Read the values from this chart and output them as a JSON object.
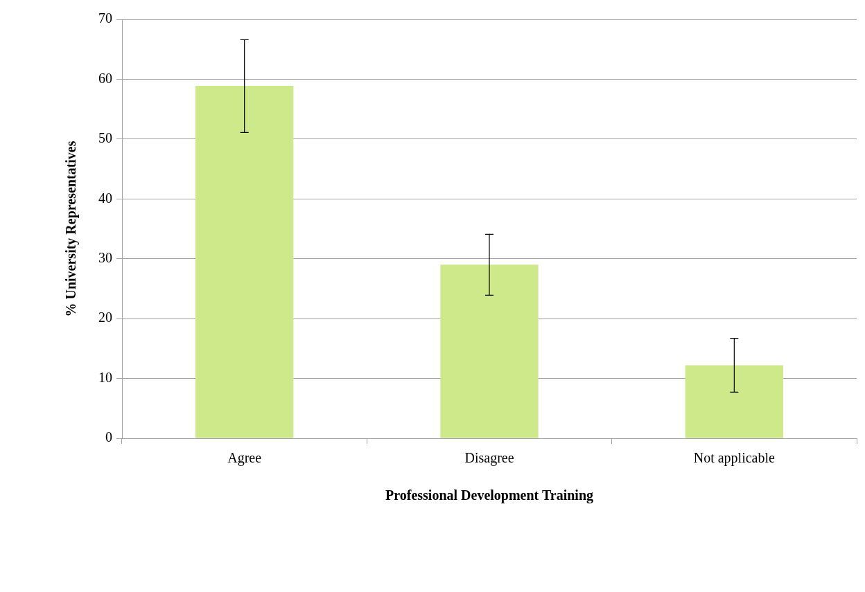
{
  "chart_data": {
    "type": "bar",
    "xlabel": "Professional Development Training",
    "ylabel": "% University Representatives",
    "categories": [
      "Agree",
      "Disagree",
      "Not applicable"
    ],
    "values": [
      58.9,
      29.0,
      12.2
    ],
    "errors": [
      [
        51.1,
        66.6
      ],
      [
        23.9,
        34.1
      ],
      [
        7.7,
        16.7
      ]
    ],
    "color": "#cde98a",
    "ylim": [
      0,
      70
    ],
    "yticks": [
      0,
      10,
      20,
      30,
      40,
      50,
      60,
      70
    ],
    "grid": "y",
    "legend": false
  }
}
